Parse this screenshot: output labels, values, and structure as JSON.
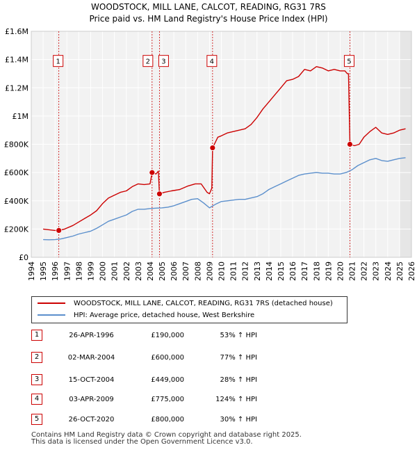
{
  "chart_data": {
    "type": "line",
    "title": "WOODSTOCK, MILL LANE, CALCOT, READING, RG31 7RS",
    "subtitle": "Price paid vs. HM Land Registry's House Price Index (HPI)",
    "xlabel": "",
    "ylabel": "",
    "xlim": [
      1994,
      2026
    ],
    "ylim": [
      0,
      1600000
    ],
    "x_ticks": [
      "1994",
      "1995",
      "1996",
      "1997",
      "1998",
      "1999",
      "2000",
      "2001",
      "2002",
      "2003",
      "2004",
      "2005",
      "2006",
      "2007",
      "2008",
      "2009",
      "2010",
      "2011",
      "2012",
      "2013",
      "2014",
      "2015",
      "2016",
      "2017",
      "2018",
      "2019",
      "2020",
      "2021",
      "2022",
      "2023",
      "2024",
      "2025",
      "2026"
    ],
    "y_ticks": [
      {
        "value": 0,
        "label": "£0"
      },
      {
        "value": 200000,
        "label": "£200K"
      },
      {
        "value": 400000,
        "label": "£400K"
      },
      {
        "value": 600000,
        "label": "£600K"
      },
      {
        "value": 800000,
        "label": "£800K"
      },
      {
        "value": 1000000,
        "label": "£1M"
      },
      {
        "value": 1200000,
        "label": "£1.2M"
      },
      {
        "value": 1400000,
        "label": "£1.4M"
      },
      {
        "value": 1600000,
        "label": "£1.6M"
      }
    ],
    "grid": true,
    "series": [
      {
        "name": "WOODSTOCK, MILL LANE, CALCOT, READING, RG31 7RS (detached house)",
        "color": "#cc0000",
        "x": [
          1995.0,
          1995.5,
          1996.0,
          1996.32,
          1996.8,
          1997.5,
          1998.0,
          1998.5,
          1999.0,
          1999.5,
          2000.0,
          2000.5,
          2001.0,
          2001.5,
          2002.0,
          2002.5,
          2003.0,
          2003.5,
          2004.0,
          2004.17,
          2004.5,
          2004.7,
          2004.79,
          2005.2,
          2005.8,
          2006.5,
          2007.2,
          2007.8,
          2008.3,
          2008.8,
          2009.0,
          2009.2,
          2009.26,
          2009.7,
          2010.0,
          2010.5,
          2011.0,
          2011.5,
          2012.0,
          2012.5,
          2013.0,
          2013.5,
          2014.0,
          2014.5,
          2015.0,
          2015.5,
          2016.0,
          2016.5,
          2017.0,
          2017.5,
          2018.0,
          2018.5,
          2019.0,
          2019.5,
          2020.0,
          2020.4,
          2020.6,
          2020.7,
          2020.82,
          2021.2,
          2021.6,
          2022.0,
          2022.5,
          2023.0,
          2023.5,
          2024.0,
          2024.5,
          2025.0,
          2025.5
        ],
        "values": [
          200000,
          195000,
          190000,
          190000,
          200000,
          225000,
          250000,
          275000,
          300000,
          330000,
          380000,
          420000,
          440000,
          460000,
          470000,
          500000,
          520000,
          515000,
          520000,
          600000,
          590000,
          610000,
          449000,
          460000,
          470000,
          480000,
          505000,
          520000,
          520000,
          460000,
          450000,
          490000,
          775000,
          850000,
          860000,
          880000,
          890000,
          900000,
          910000,
          940000,
          990000,
          1050000,
          1100000,
          1150000,
          1200000,
          1250000,
          1260000,
          1280000,
          1330000,
          1320000,
          1350000,
          1340000,
          1320000,
          1330000,
          1320000,
          1320000,
          1300000,
          1300000,
          800000,
          790000,
          800000,
          850000,
          890000,
          920000,
          880000,
          870000,
          880000,
          900000,
          910000
        ]
      },
      {
        "name": "HPI: Average price, detached house, West Berkshire",
        "color": "#5b8fcc",
        "x": [
          1995.0,
          1995.5,
          1996.0,
          1996.5,
          1997.0,
          1997.5,
          1998.0,
          1998.5,
          1999.0,
          1999.5,
          2000.0,
          2000.5,
          2001.0,
          2001.5,
          2002.0,
          2002.5,
          2003.0,
          2003.5,
          2004.0,
          2004.5,
          2005.0,
          2005.5,
          2006.0,
          2006.5,
          2007.0,
          2007.5,
          2008.0,
          2008.5,
          2009.0,
          2009.5,
          2010.0,
          2010.5,
          2011.0,
          2011.5,
          2012.0,
          2012.5,
          2013.0,
          2013.5,
          2014.0,
          2014.5,
          2015.0,
          2015.5,
          2016.0,
          2016.5,
          2017.0,
          2017.5,
          2018.0,
          2018.5,
          2019.0,
          2019.5,
          2020.0,
          2020.5,
          2021.0,
          2021.5,
          2022.0,
          2022.5,
          2023.0,
          2023.5,
          2024.0,
          2024.5,
          2025.0,
          2025.5
        ],
        "values": [
          125000,
          124000,
          125000,
          130000,
          140000,
          150000,
          165000,
          175000,
          185000,
          205000,
          230000,
          255000,
          270000,
          285000,
          300000,
          325000,
          340000,
          340000,
          345000,
          348000,
          350000,
          355000,
          365000,
          380000,
          395000,
          410000,
          415000,
          385000,
          350000,
          375000,
          395000,
          400000,
          405000,
          410000,
          410000,
          420000,
          430000,
          450000,
          480000,
          500000,
          520000,
          540000,
          560000,
          580000,
          590000,
          595000,
          600000,
          595000,
          595000,
          590000,
          590000,
          600000,
          620000,
          650000,
          670000,
          690000,
          700000,
          685000,
          680000,
          690000,
          700000,
          705000
        ]
      }
    ],
    "sales": [
      {
        "num": "1",
        "x": 1996.32,
        "value": 190000,
        "date": "26-APR-1996",
        "price": "£190,000",
        "hpi": "53% ↑ HPI"
      },
      {
        "num": "2",
        "x": 2004.17,
        "value": 600000,
        "date": "02-MAR-2004",
        "price": "£600,000",
        "hpi": "77% ↑ HPI"
      },
      {
        "num": "3",
        "x": 2004.79,
        "value": 449000,
        "date": "15-OCT-2004",
        "price": "£449,000",
        "hpi": "28% ↑ HPI"
      },
      {
        "num": "4",
        "x": 2009.26,
        "value": 775000,
        "date": "03-APR-2009",
        "price": "£775,000",
        "hpi": "124% ↑ HPI"
      },
      {
        "num": "5",
        "x": 2020.82,
        "value": 800000,
        "date": "26-OCT-2020",
        "price": "£800,000",
        "hpi": "30% ↑ HPI"
      }
    ]
  },
  "legend": {
    "property_label": "WOODSTOCK, MILL LANE, CALCOT, READING, RG31 7RS (detached house)",
    "hpi_label": "HPI: Average price, detached house, West Berkshire"
  },
  "footer": {
    "line1": "Contains HM Land Registry data © Crown copyright and database right 2025.",
    "line2": "This data is licensed under the Open Government Licence v3.0."
  }
}
